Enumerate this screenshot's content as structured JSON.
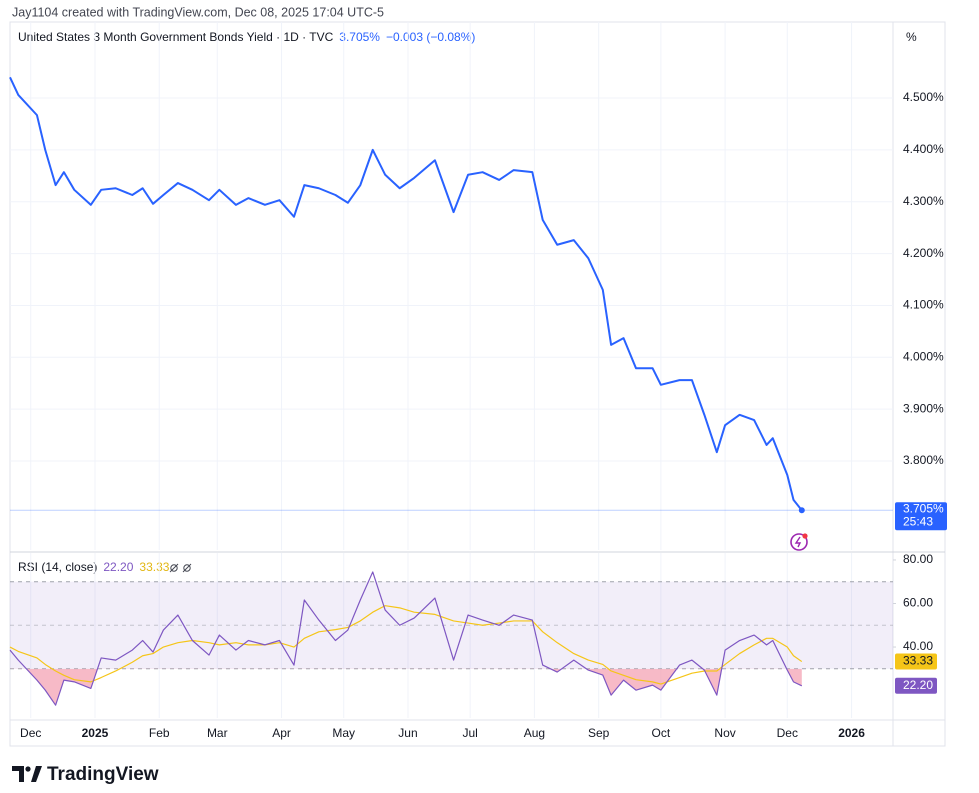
{
  "attribution": "Jay1104 created with TradingView.com, Dec 08, 2025 17:04 UTC-5",
  "footer": {
    "brand": "TradingView"
  },
  "chart_data": [
    {
      "type": "line",
      "y_unit_label": "%",
      "countdown": "25:43",
      "change_label": "−0.003 (−0.08%)",
      "x": [
        "2024-11-21",
        "2024-11-25",
        "2024-12-04",
        "2024-12-08",
        "2024-12-13",
        "2024-12-17",
        "2024-12-22",
        "2024-12-30",
        "2025-01-04",
        "2025-01-11",
        "2025-01-19",
        "2025-01-24",
        "2025-01-29",
        "2025-02-03",
        "2025-02-10",
        "2025-02-17",
        "2025-02-25",
        "2025-03-02",
        "2025-03-10",
        "2025-03-16",
        "2025-03-24",
        "2025-03-31",
        "2025-04-07",
        "2025-04-12",
        "2025-04-19",
        "2025-04-27",
        "2025-05-03",
        "2025-05-09",
        "2025-05-15",
        "2025-05-21",
        "2025-05-28",
        "2025-06-04",
        "2025-06-14",
        "2025-06-23",
        "2025-06-30",
        "2025-07-07",
        "2025-07-15",
        "2025-07-22",
        "2025-07-31",
        "2025-08-05",
        "2025-08-12",
        "2025-08-20",
        "2025-08-27",
        "2025-09-03",
        "2025-09-07",
        "2025-09-13",
        "2025-09-19",
        "2025-09-27",
        "2025-10-01",
        "2025-10-10",
        "2025-10-16",
        "2025-10-22",
        "2025-10-28",
        "2025-11-01",
        "2025-11-08",
        "2025-11-15",
        "2025-11-21",
        "2025-11-24",
        "2025-12-01",
        "2025-12-04",
        "2025-12-08"
      ],
      "series": [
        {
          "name": "United States 3 Month Government Bonds Yield · 1D · TVC",
          "color": "#2962ff",
          "last_value_label": "3.705%",
          "values": [
            4.54,
            4.506,
            4.467,
            4.4,
            4.332,
            4.357,
            4.323,
            4.294,
            4.323,
            4.326,
            4.313,
            4.326,
            4.296,
            4.313,
            4.336,
            4.323,
            4.303,
            4.323,
            4.294,
            4.307,
            4.294,
            4.303,
            4.271,
            4.332,
            4.326,
            4.313,
            4.298,
            4.332,
            4.4,
            4.352,
            4.326,
            4.346,
            4.38,
            4.28,
            4.352,
            4.357,
            4.342,
            4.361,
            4.357,
            4.265,
            4.217,
            4.226,
            4.191,
            4.13,
            4.024,
            4.037,
            3.979,
            3.979,
            3.947,
            3.956,
            3.956,
            3.889,
            3.817,
            3.869,
            3.889,
            3.879,
            3.831,
            3.844,
            3.773,
            3.725,
            3.705
          ]
        }
      ],
      "xlim": [
        "2024-11-21",
        "2026-01-21"
      ],
      "xticks": [
        {
          "value": "2024-12-01",
          "label": "Dec"
        },
        {
          "value": "2025-01-01",
          "label": "2025"
        },
        {
          "value": "2025-02-01",
          "label": "Feb"
        },
        {
          "value": "2025-03-01",
          "label": "Mar"
        },
        {
          "value": "2025-04-01",
          "label": "Apr"
        },
        {
          "value": "2025-05-01",
          "label": "May"
        },
        {
          "value": "2025-06-01",
          "label": "Jun"
        },
        {
          "value": "2025-07-01",
          "label": "Jul"
        },
        {
          "value": "2025-08-01",
          "label": "Aug"
        },
        {
          "value": "2025-09-01",
          "label": "Sep"
        },
        {
          "value": "2025-10-01",
          "label": "Oct"
        },
        {
          "value": "2025-11-01",
          "label": "Nov"
        },
        {
          "value": "2025-12-01",
          "label": "Dec"
        },
        {
          "value": "2026-01-01",
          "label": "2026"
        }
      ],
      "ylim": [
        3.6284,
        4.6466
      ],
      "yticks": [
        {
          "value": 3.8,
          "label": "3.800%"
        },
        {
          "value": 3.9,
          "label": "3.900%"
        },
        {
          "value": 4.0,
          "label": "4.000%"
        },
        {
          "value": 4.1,
          "label": "4.100%"
        },
        {
          "value": 4.2,
          "label": "4.200%"
        },
        {
          "value": 4.3,
          "label": "4.300%"
        },
        {
          "value": 4.4,
          "label": "4.400%"
        },
        {
          "value": 4.5,
          "label": "4.500%"
        }
      ],
      "grid": true
    },
    {
      "type": "line",
      "title": "RSI (14, close)",
      "x": [
        "2024-11-21",
        "2024-11-25",
        "2024-12-04",
        "2024-12-08",
        "2024-12-13",
        "2024-12-17",
        "2024-12-22",
        "2024-12-30",
        "2025-01-04",
        "2025-01-11",
        "2025-01-19",
        "2025-01-24",
        "2025-01-29",
        "2025-02-03",
        "2025-02-10",
        "2025-02-17",
        "2025-02-25",
        "2025-03-02",
        "2025-03-10",
        "2025-03-16",
        "2025-03-24",
        "2025-03-31",
        "2025-04-07",
        "2025-04-12",
        "2025-04-19",
        "2025-04-27",
        "2025-05-03",
        "2025-05-09",
        "2025-05-15",
        "2025-05-21",
        "2025-05-28",
        "2025-06-04",
        "2025-06-14",
        "2025-06-23",
        "2025-06-30",
        "2025-07-07",
        "2025-07-15",
        "2025-07-22",
        "2025-07-31",
        "2025-08-05",
        "2025-08-12",
        "2025-08-20",
        "2025-08-27",
        "2025-09-03",
        "2025-09-07",
        "2025-09-13",
        "2025-09-19",
        "2025-09-27",
        "2025-10-01",
        "2025-10-10",
        "2025-10-16",
        "2025-10-22",
        "2025-10-28",
        "2025-11-01",
        "2025-11-08",
        "2025-11-15",
        "2025-11-21",
        "2025-11-24",
        "2025-12-01",
        "2025-12-04",
        "2025-12-08"
      ],
      "series": [
        {
          "color": "#7e57c2",
          "last_value_label": "22.20",
          "values": [
            38.6,
            34,
            24.8,
            20.2,
            13.3,
            24.8,
            24,
            21,
            35,
            34,
            38.6,
            43,
            37.7,
            47.8,
            54.7,
            43,
            36.3,
            45.5,
            38.6,
            43,
            41,
            43,
            31.7,
            61.6,
            52.4,
            43,
            47.8,
            61.6,
            74.5,
            57,
            50,
            53.3,
            62.5,
            34,
            54.7,
            52.4,
            50,
            54.7,
            52.4,
            31.7,
            28.5,
            34,
            29.4,
            27.1,
            17.9,
            24.8,
            20.2,
            22.5,
            20.2,
            31.7,
            34,
            29.4,
            17.9,
            38.6,
            43,
            45.5,
            41,
            43,
            29.4,
            24,
            22.2
          ]
        },
        {
          "color": "#f5c518",
          "last_value_label": "33.33",
          "values": [
            40,
            38,
            35,
            32,
            29,
            27,
            25,
            24,
            26,
            29,
            33,
            36,
            37,
            40,
            42,
            43,
            42,
            41,
            42,
            41,
            41,
            42,
            40,
            44,
            47,
            48,
            49,
            52,
            56,
            59,
            58,
            56,
            55,
            52,
            51,
            50,
            51,
            52,
            52,
            47,
            42,
            37,
            34,
            32,
            29,
            27,
            25,
            24,
            23,
            26,
            28,
            29,
            29,
            32,
            37,
            41,
            44,
            44,
            40,
            36,
            33.33
          ]
        }
      ],
      "xlim": [
        "2024-11-21",
        "2026-01-21"
      ],
      "ylim": [
        7.4,
        83.2
      ],
      "yticks": [
        {
          "value": 40,
          "label": "40.00"
        },
        {
          "value": 60,
          "label": "60.00"
        },
        {
          "value": 80,
          "label": "80.00"
        }
      ],
      "levels": [
        70,
        50,
        30
      ],
      "band_color": "#7e57c2",
      "oversold_color": "#f4a3b4"
    }
  ]
}
